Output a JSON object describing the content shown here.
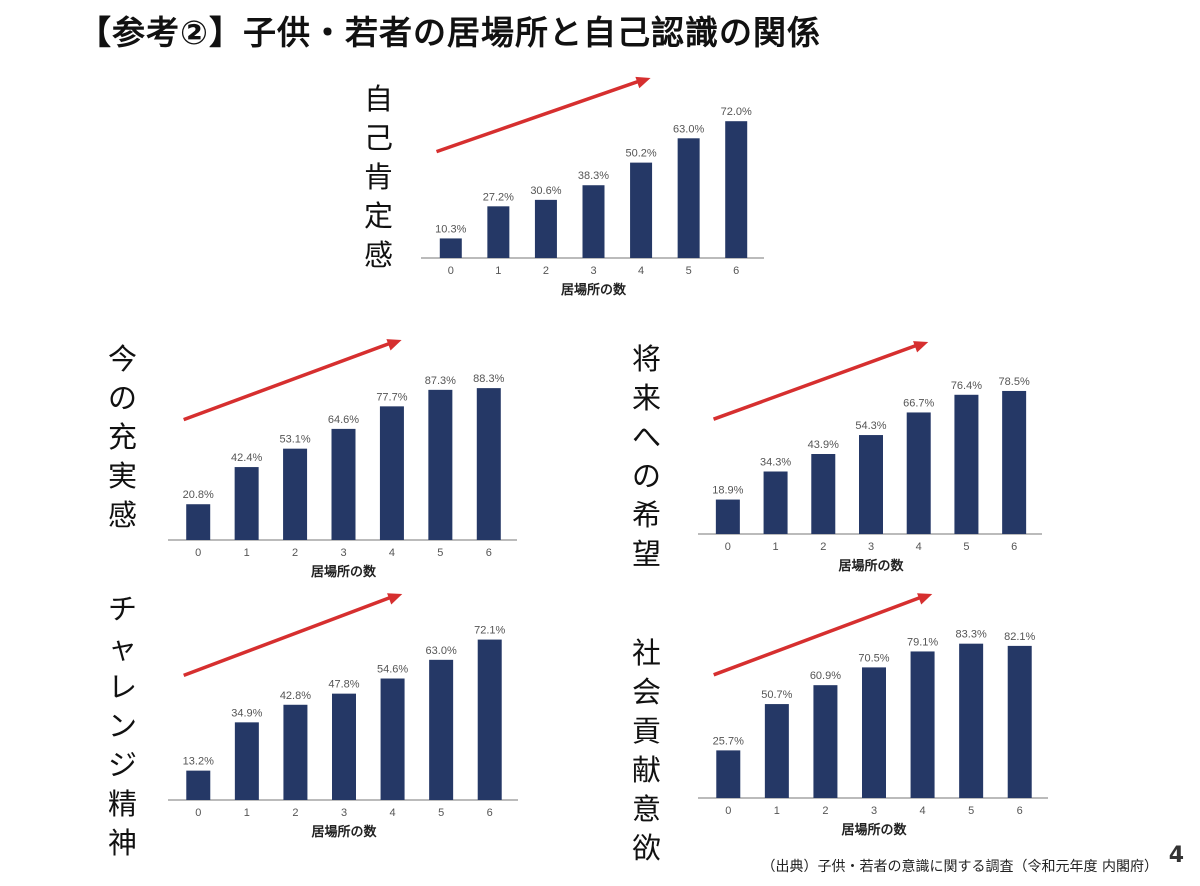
{
  "title": "【参考②】子供・若者の居場所と自己認識の関係",
  "source": "（出典）子供・若者の意識に関する調査（令和元年度 内閣府）",
  "page_number": "4",
  "colors": {
    "bar": "#253866",
    "trend_arrow": "#d62f2f"
  },
  "chart_data": [
    {
      "type": "bar",
      "label": "自己肯定感",
      "categories": [
        "0",
        "1",
        "2",
        "3",
        "4",
        "5",
        "6"
      ],
      "values": [
        10.3,
        27.2,
        30.6,
        38.3,
        50.2,
        63.0,
        72.0
      ],
      "value_labels": [
        "10.3%",
        "27.2%",
        "30.6%",
        "38.3%",
        "50.2%",
        "63.0%",
        "72.0%"
      ],
      "xlabel": "居場所の数",
      "ylabel": "",
      "ylim": [
        0,
        80
      ],
      "grid": false,
      "trend_arrow": true
    },
    {
      "type": "bar",
      "label": "今の充実感",
      "categories": [
        "0",
        "1",
        "2",
        "3",
        "4",
        "5",
        "6"
      ],
      "values": [
        20.8,
        42.4,
        53.1,
        64.6,
        77.7,
        87.3,
        88.3
      ],
      "value_labels": [
        "20.8%",
        "42.4%",
        "53.1%",
        "64.6%",
        "77.7%",
        "87.3%",
        "88.3%"
      ],
      "xlabel": "居場所の数",
      "ylabel": "",
      "ylim": [
        0,
        100
      ],
      "grid": false,
      "trend_arrow": true
    },
    {
      "type": "bar",
      "label": "将来への希望",
      "categories": [
        "0",
        "1",
        "2",
        "3",
        "4",
        "5",
        "6"
      ],
      "values": [
        18.9,
        34.3,
        43.9,
        54.3,
        66.7,
        76.4,
        78.5
      ],
      "value_labels": [
        "18.9%",
        "34.3%",
        "43.9%",
        "54.3%",
        "66.7%",
        "76.4%",
        "78.5%"
      ],
      "xlabel": "居場所の数",
      "ylabel": "",
      "ylim": [
        0,
        90
      ],
      "grid": false,
      "trend_arrow": true
    },
    {
      "type": "bar",
      "label": "チャレンジ精神",
      "categories": [
        "0",
        "1",
        "2",
        "3",
        "4",
        "5",
        "6"
      ],
      "values": [
        13.2,
        34.9,
        42.8,
        47.8,
        54.6,
        63.0,
        72.1
      ],
      "value_labels": [
        "13.2%",
        "34.9%",
        "42.8%",
        "47.8%",
        "54.6%",
        "63.0%",
        "72.1%"
      ],
      "xlabel": "居場所の数",
      "ylabel": "",
      "ylim": [
        0,
        80
      ],
      "grid": false,
      "trend_arrow": true
    },
    {
      "type": "bar",
      "label": "社会貢献意欲",
      "categories": [
        "0",
        "1",
        "2",
        "3",
        "4",
        "5",
        "6"
      ],
      "values": [
        25.7,
        50.7,
        60.9,
        70.5,
        79.1,
        83.3,
        82.1
      ],
      "value_labels": [
        "25.7%",
        "50.7%",
        "60.9%",
        "70.5%",
        "79.1%",
        "83.3%",
        "82.1%"
      ],
      "xlabel": "居場所の数",
      "ylabel": "",
      "ylim": [
        0,
        95
      ],
      "grid": false,
      "trend_arrow": true
    }
  ]
}
